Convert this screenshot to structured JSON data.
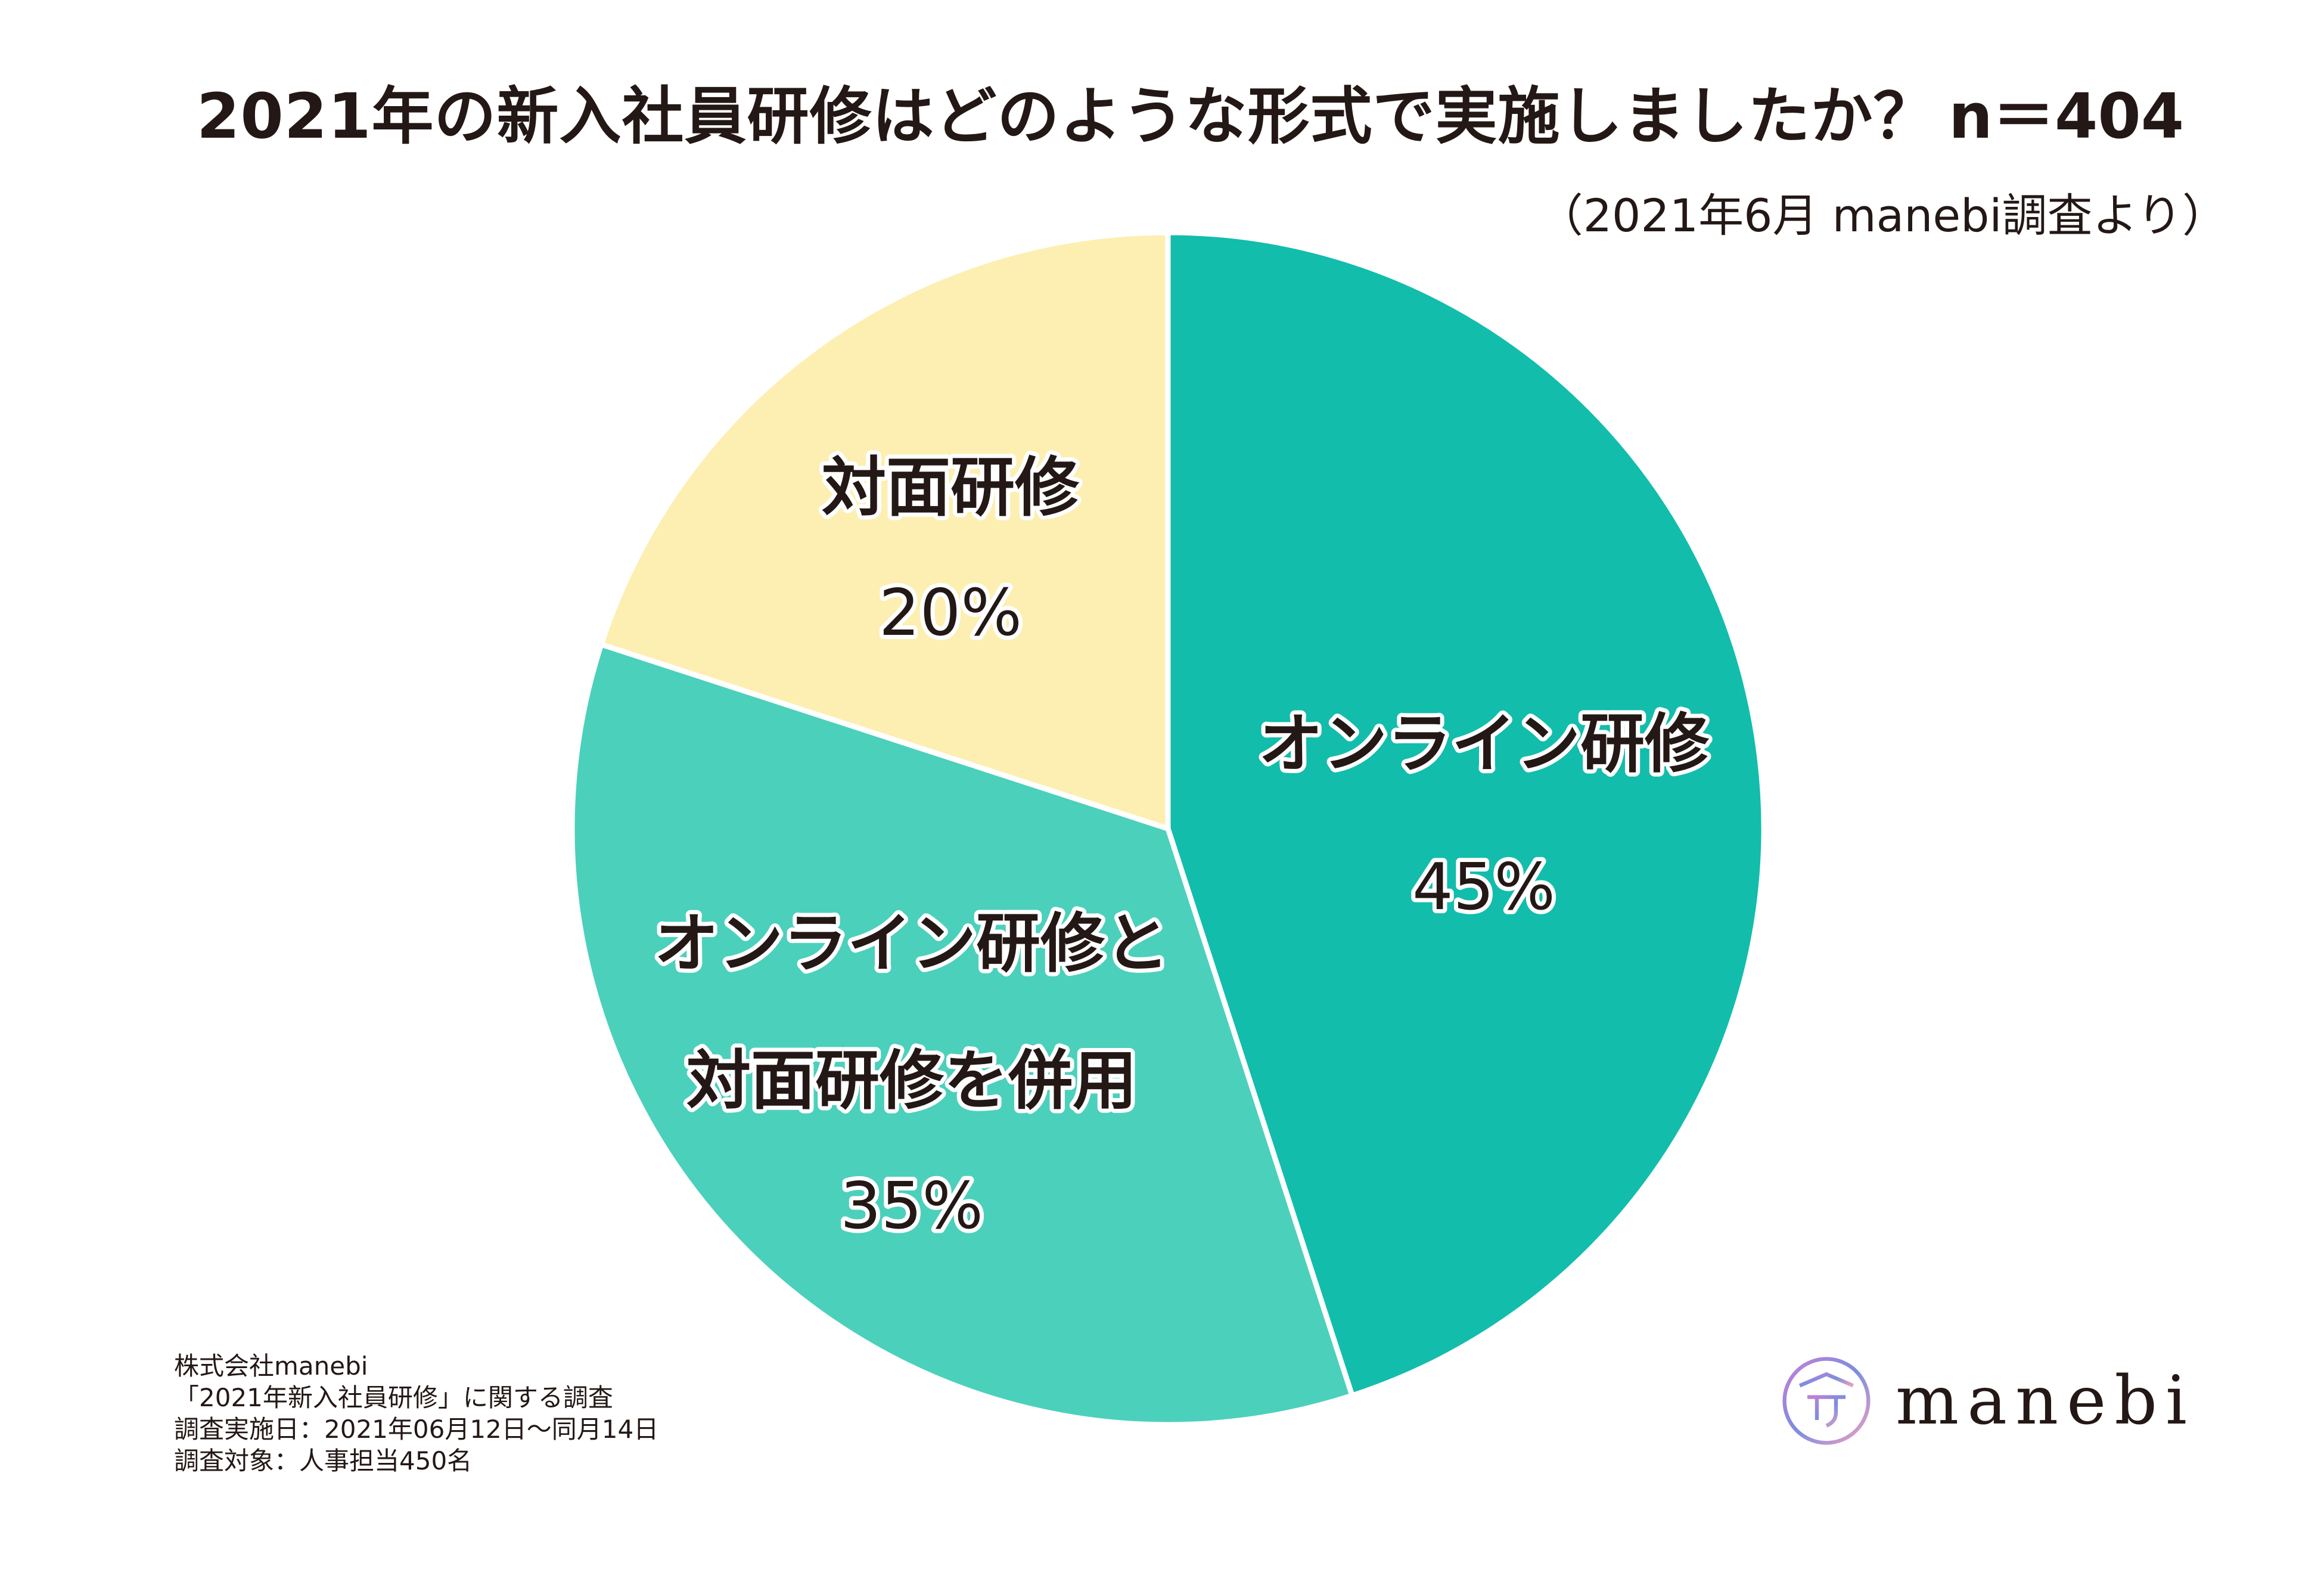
{
  "header": {
    "title": "2021年の新入社員研修はどのような形式で実施しましたか？",
    "sample_size": "n＝404",
    "source_note": "（2021年6月 manebi調査より）"
  },
  "chart_data": {
    "type": "pie",
    "slices": [
      {
        "label_lines": [
          "オンライン研修"
        ],
        "percent_label": "45%",
        "value": 45,
        "color": "#12bdab"
      },
      {
        "label_lines": [
          "オンライン研修と",
          "対面研修を併用"
        ],
        "percent_label": "35%",
        "value": 35,
        "color": "#4bd0bb"
      },
      {
        "label_lines": [
          "対面研修"
        ],
        "percent_label": "20%",
        "value": 20,
        "color": "#fdefb2"
      }
    ],
    "start": "12 o'clock",
    "direction": "clockwise",
    "legend": "none"
  },
  "footnote": {
    "lines": [
      "株式会社manebi",
      "「2021年新入社員研修」に関する調査",
      "調査実施日：2021年06月12日～同月14日",
      "調査対象：人事担当450名"
    ]
  },
  "logo": {
    "text": "manebi",
    "icon": "manebi-logo-icon",
    "colors": [
      "#c77fd6",
      "#7a8ee0",
      "#f0a0c0"
    ]
  }
}
